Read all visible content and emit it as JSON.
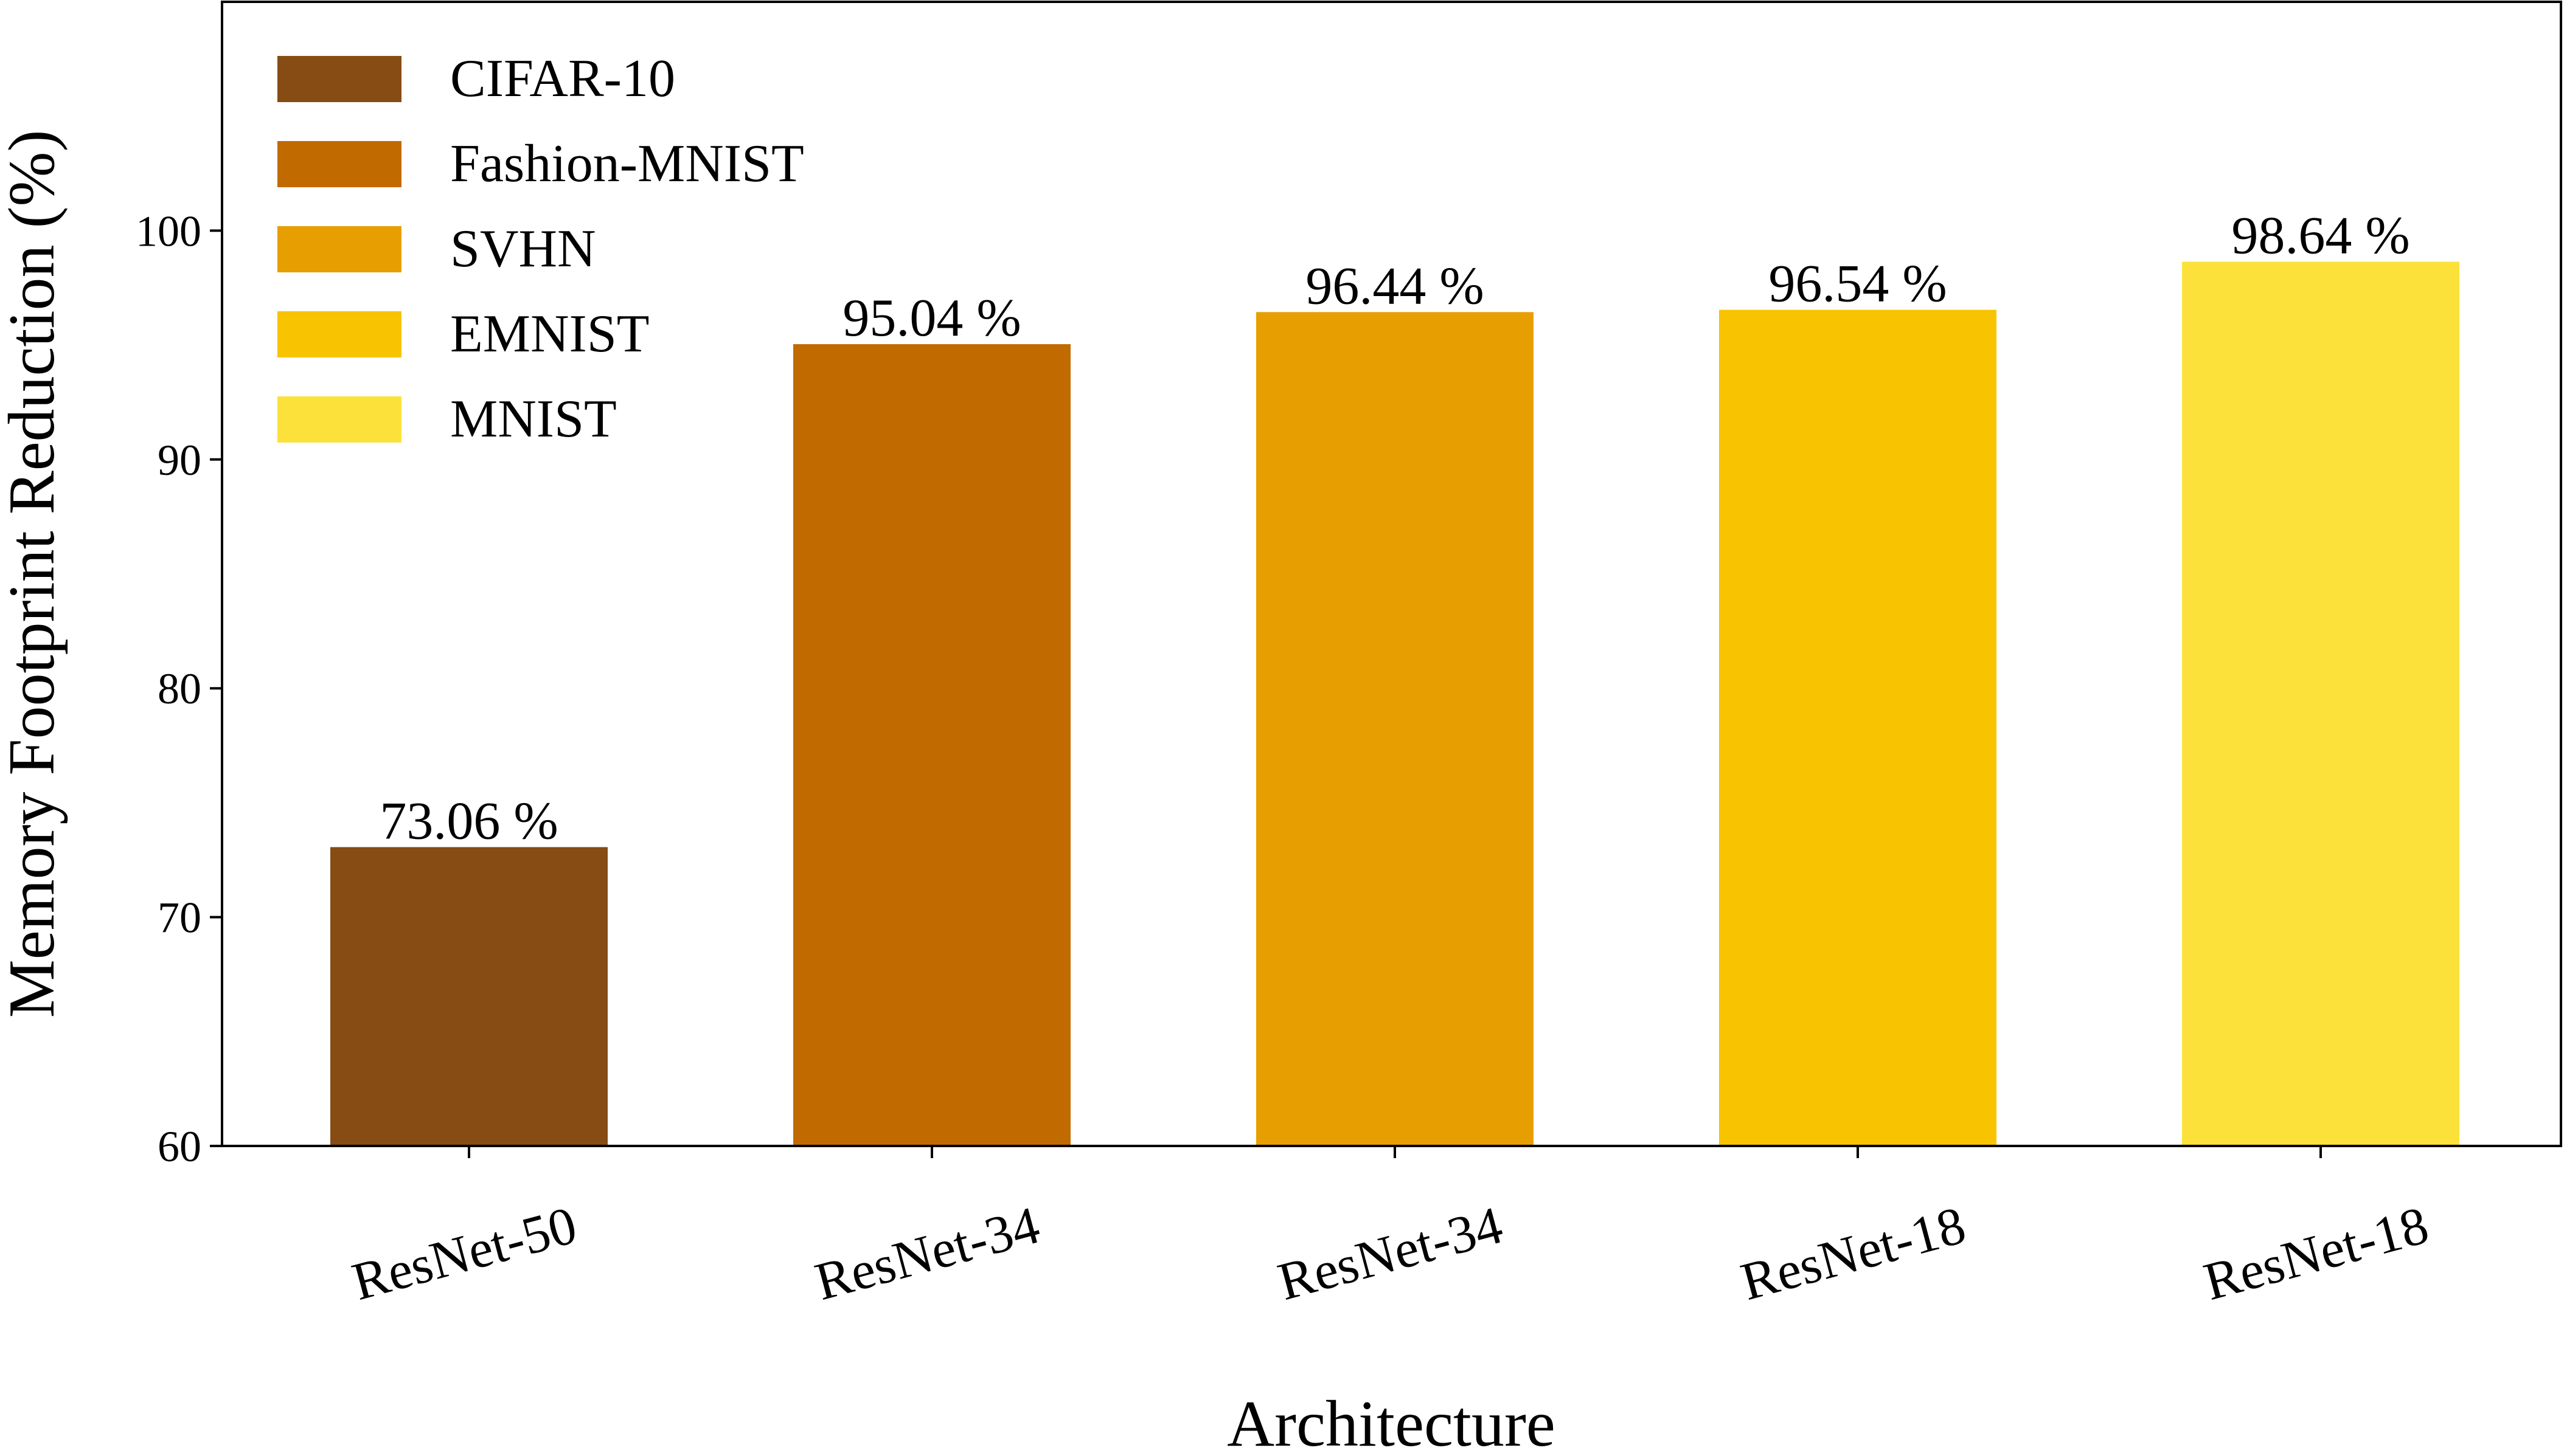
{
  "chart_data": {
    "type": "bar",
    "title": "",
    "xlabel": "Architecture",
    "ylabel": "Memory Footprint Reduction (%)",
    "ylim": [
      60,
      110
    ],
    "yticks": [
      60,
      70,
      80,
      90,
      100
    ],
    "grid": false,
    "legend_position": "top-left",
    "categories": [
      "ResNet-50",
      "ResNet-34",
      "ResNet-34",
      "ResNet-18",
      "ResNet-18"
    ],
    "values": [
      73.06,
      95.04,
      96.44,
      96.54,
      98.64
    ],
    "data_labels": [
      "73.06 %",
      "95.04 %",
      "96.44 %",
      "96.54 %",
      "98.64 %"
    ],
    "legend": [
      "CIFAR-10",
      "Fashion-MNIST",
      "SVHN",
      "EMNIST",
      "MNIST"
    ],
    "colors": [
      "#864C13",
      "#C16A00",
      "#E79E00",
      "#F8C300",
      "#FCE13B"
    ]
  }
}
